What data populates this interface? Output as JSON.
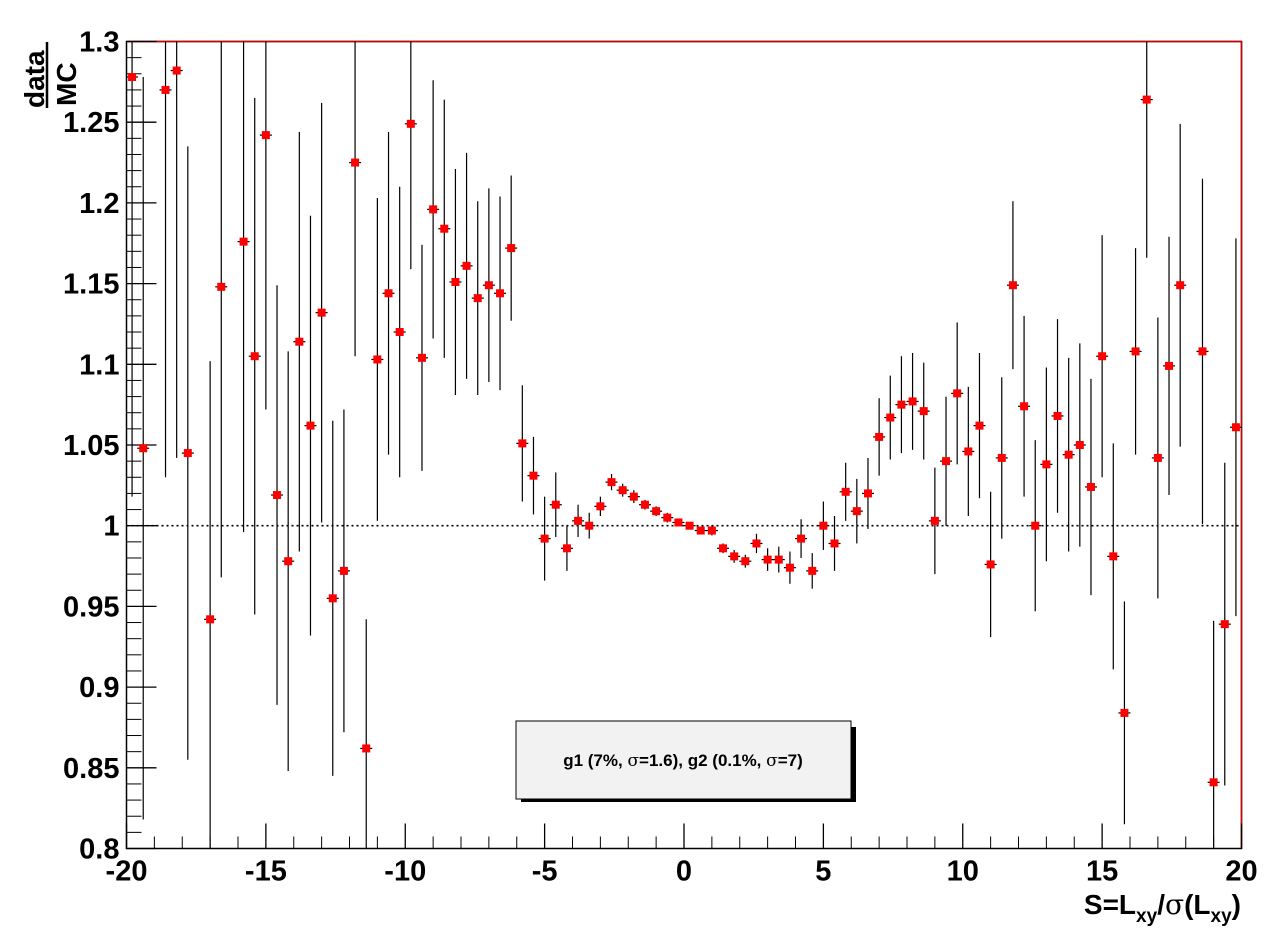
{
  "chart_data": {
    "type": "scatter",
    "title": "",
    "xlabel": {
      "prefix": "S=L",
      "sub1": "xy",
      "mid": "/",
      "sigma": "σ",
      "open": "(L",
      "sub2": "xy",
      "close": ")"
    },
    "ylabel": {
      "numerator": "data",
      "denominator": "MC"
    },
    "xlim": [
      -20,
      20
    ],
    "ylim": [
      0.8,
      1.3
    ],
    "x_tick_labels": [
      "-20",
      "-15",
      "-10",
      "-5",
      "0",
      "5",
      "10",
      "15",
      "20"
    ],
    "y_tick_labels": [
      "0.8",
      "0.85",
      "0.9",
      "0.95",
      "1",
      "1.05",
      "1.1",
      "1.15",
      "1.2",
      "1.25",
      "1.3"
    ],
    "reference_line_y": 1.0,
    "marker_color": "#ff0000",
    "legend": {
      "parts": [
        {
          "text": "g1 (7%, "
        },
        {
          "text": "σ",
          "font": "serif"
        },
        {
          "text": "=1.6), g2 (0.1%, "
        },
        {
          "text": "σ",
          "font": "serif"
        },
        {
          "text": "=7)"
        }
      ]
    },
    "series": [
      {
        "x": [
          -19.8,
          -19.4,
          -18.6,
          -18.2,
          -17.8,
          -17.0,
          -16.6,
          -15.8,
          -15.4,
          -15.0,
          -14.6,
          -14.2,
          -13.8,
          -13.4,
          -13.0,
          -12.6,
          -12.2,
          -11.8,
          -11.4,
          -11.0,
          -10.6,
          -10.2,
          -9.8,
          -9.4,
          -9.0,
          -8.6,
          -8.2,
          -7.8,
          -7.4,
          -7.0,
          -6.6,
          -6.2,
          -5.8,
          -5.4,
          -5.0,
          -4.6,
          -4.2,
          -3.8,
          -3.4,
          -3.0,
          -2.6,
          -2.2,
          -1.8,
          -1.4,
          -1.0,
          -0.6,
          -0.2,
          0.2,
          0.6,
          1.0,
          1.4,
          1.8,
          2.2,
          2.6,
          3.0,
          3.4,
          3.8,
          4.2,
          4.6,
          5.0,
          5.4,
          5.8,
          6.2,
          6.6,
          7.0,
          7.4,
          7.8,
          8.2,
          8.6,
          9.0,
          9.4,
          9.8,
          10.2,
          10.6,
          11.0,
          11.4,
          11.8,
          12.2,
          12.6,
          13.0,
          13.4,
          13.8,
          14.2,
          14.6,
          15.0,
          15.4,
          15.8,
          16.2,
          16.6,
          17.0,
          17.4,
          17.8,
          18.6,
          19.0,
          19.4,
          19.8
        ],
        "y": [
          1.278,
          1.048,
          1.27,
          1.282,
          1.045,
          0.942,
          1.148,
          1.176,
          1.105,
          1.242,
          1.019,
          0.978,
          1.114,
          1.062,
          1.132,
          0.955,
          0.972,
          1.225,
          0.862,
          1.103,
          1.144,
          1.12,
          1.249,
          1.104,
          1.196,
          1.184,
          1.151,
          1.161,
          1.141,
          1.149,
          1.144,
          1.172,
          1.051,
          1.031,
          0.992,
          1.013,
          0.986,
          1.003,
          1.0,
          1.012,
          1.027,
          1.022,
          1.018,
          1.013,
          1.009,
          1.005,
          1.002,
          1.0,
          0.997,
          0.997,
          0.986,
          0.981,
          0.978,
          0.989,
          0.979,
          0.979,
          0.974,
          0.992,
          0.972,
          1.0,
          0.989,
          1.021,
          1.009,
          1.02,
          1.055,
          1.067,
          1.075,
          1.077,
          1.071,
          1.003,
          1.04,
          1.082,
          1.046,
          1.062,
          0.976,
          1.042,
          1.149,
          1.074,
          1.0,
          1.038,
          1.068,
          1.044,
          1.05,
          1.024,
          1.105,
          0.981,
          0.884,
          1.108,
          1.264,
          1.042,
          1.099,
          1.149,
          1.108,
          0.841,
          0.939,
          1.061
        ],
        "err": [
          0.26,
          0.23,
          0.24,
          0.24,
          0.19,
          0.16,
          0.18,
          0.18,
          0.16,
          0.17,
          0.13,
          0.13,
          0.13,
          0.13,
          0.13,
          0.11,
          0.1,
          0.12,
          0.08,
          0.1,
          0.1,
          0.09,
          0.09,
          0.07,
          0.08,
          0.08,
          0.07,
          0.07,
          0.06,
          0.06,
          0.06,
          0.045,
          0.036,
          0.024,
          0.026,
          0.02,
          0.014,
          0.01,
          0.008,
          0.006,
          0.005,
          0.004,
          0.004,
          0.003,
          0.003,
          0.003,
          0.002,
          0.002,
          0.002,
          0.003,
          0.003,
          0.004,
          0.004,
          0.006,
          0.007,
          0.008,
          0.01,
          0.012,
          0.011,
          0.015,
          0.017,
          0.018,
          0.02,
          0.022,
          0.024,
          0.026,
          0.03,
          0.03,
          0.03,
          0.033,
          0.04,
          0.044,
          0.04,
          0.045,
          0.045,
          0.05,
          0.052,
          0.056,
          0.053,
          0.06,
          0.06,
          0.06,
          0.063,
          0.067,
          0.075,
          0.07,
          0.069,
          0.064,
          0.098,
          0.087,
          0.08,
          0.1,
          0.107,
          0.1,
          0.1,
          0.117
        ]
      }
    ]
  }
}
